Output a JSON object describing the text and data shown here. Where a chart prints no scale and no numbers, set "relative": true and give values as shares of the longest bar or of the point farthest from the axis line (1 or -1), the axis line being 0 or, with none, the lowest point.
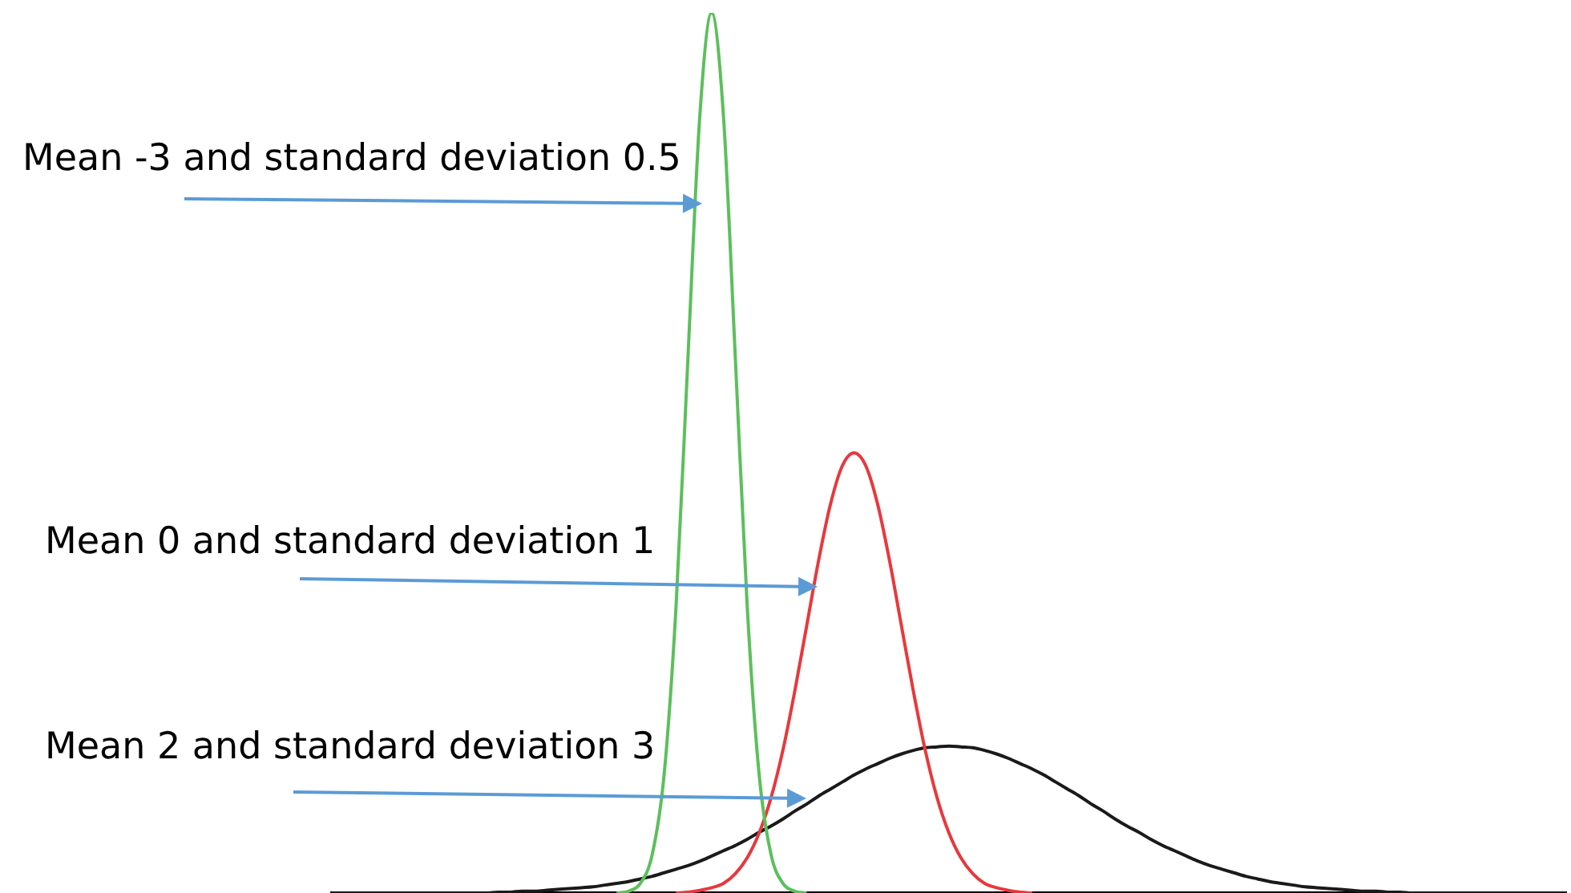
{
  "chart_data": {
    "type": "line",
    "relative": true,
    "categories": [
      null,
      null,
      null,
      null,
      null,
      null,
      null,
      null,
      null,
      null,
      null,
      null,
      null,
      null,
      null,
      null,
      null,
      null,
      null,
      null,
      null,
      null,
      null,
      null,
      null,
      null,
      null,
      null,
      null,
      null,
      null,
      null,
      null,
      null,
      null,
      null,
      null,
      null,
      null,
      null,
      null,
      null,
      null,
      null,
      null,
      null,
      null,
      null,
      null,
      null,
      null,
      null,
      null,
      null,
      null,
      null,
      null,
      null,
      null,
      null,
      null,
      null,
      null,
      null,
      null,
      null,
      null,
      null,
      null,
      null,
      null,
      null,
      null,
      null,
      null,
      null,
      null,
      null,
      null,
      null,
      null,
      null,
      null,
      null,
      null,
      null,
      null,
      null,
      null,
      null,
      null,
      null,
      null,
      null,
      null,
      null,
      null,
      null,
      null,
      null,
      null,
      null,
      null,
      null,
      null
    ],
    "series": [
      {
        "name": "Mean -3 and standard deviation 0.5",
        "color": "#5cbf5c",
        "values": [
          null,
          null,
          null,
          null,
          null,
          null,
          null,
          null,
          null,
          null,
          null,
          null,
          null,
          null,
          null,
          null,
          null,
          null,
          null,
          null,
          null,
          null,
          null,
          null,
          0,
          0.002,
          0.011,
          0.044,
          0.135,
          0.325,
          0.607,
          0.882,
          1,
          0.882,
          0.607,
          0.325,
          0.135,
          0.044,
          0.011,
          0.002,
          0,
          null,
          null,
          null,
          null,
          null,
          null,
          null,
          null,
          null,
          null,
          null,
          null,
          null,
          null,
          null,
          null,
          null,
          null,
          null,
          null,
          null,
          null,
          null,
          null,
          null,
          null,
          null,
          null,
          null,
          null,
          null,
          null,
          null,
          null,
          null,
          null,
          null,
          null,
          null,
          null,
          null,
          null,
          null,
          null,
          null,
          null,
          null,
          null,
          null,
          null,
          null,
          null,
          null,
          null,
          null,
          null,
          null,
          null,
          null,
          null,
          null,
          null,
          null,
          null
        ]
      },
      {
        "name": "Mean 0 and standard deviation 1",
        "color": "#e8383d",
        "values": [
          null,
          null,
          null,
          null,
          null,
          null,
          null,
          null,
          null,
          null,
          null,
          null,
          null,
          null,
          null,
          null,
          null,
          null,
          null,
          null,
          null,
          null,
          null,
          null,
          null,
          null,
          null,
          null,
          null,
          0,
          0.001,
          0.003,
          0.006,
          0.011,
          0.022,
          0.04,
          0.068,
          0.108,
          0.162,
          0.229,
          0.303,
          0.377,
          0.441,
          0.485,
          0.5,
          0.485,
          0.441,
          0.377,
          0.303,
          0.229,
          0.162,
          0.108,
          0.068,
          0.04,
          0.022,
          0.011,
          0.006,
          0.003,
          0.001,
          0,
          null,
          null,
          null,
          null,
          null,
          null,
          null,
          null,
          null,
          null,
          null,
          null,
          null,
          null,
          null,
          null,
          null,
          null,
          null,
          null,
          null,
          null,
          null,
          null,
          null,
          null,
          null,
          null,
          null,
          null,
          null,
          null,
          null,
          null,
          null,
          null,
          null,
          null,
          null,
          null,
          null,
          null,
          null,
          null,
          null
        ]
      },
      {
        "name": "Mean 2 and standard deviation 3",
        "color": "#1a1a1a",
        "values": [
          0,
          0,
          0,
          0,
          0,
          0,
          0,
          0,
          0,
          0,
          0,
          0,
          0,
          0,
          0.001,
          0.001,
          0.002,
          0.002,
          0.003,
          0.004,
          0.005,
          0.006,
          0.007,
          0.009,
          0.011,
          0.013,
          0.016,
          0.019,
          0.023,
          0.027,
          0.031,
          0.036,
          0.042,
          0.048,
          0.054,
          0.061,
          0.069,
          0.076,
          0.084,
          0.093,
          0.101,
          0.11,
          0.118,
          0.126,
          0.134,
          0.141,
          0.147,
          0.153,
          0.158,
          0.162,
          0.165,
          0.166,
          0.167,
          0.166,
          0.165,
          0.162,
          0.158,
          0.153,
          0.147,
          0.141,
          0.134,
          0.126,
          0.118,
          0.11,
          0.101,
          0.093,
          0.084,
          0.076,
          0.069,
          0.061,
          0.054,
          0.048,
          0.042,
          0.036,
          0.031,
          0.027,
          0.023,
          0.019,
          0.016,
          0.013,
          0.011,
          0.009,
          0.007,
          0.006,
          0.005,
          0.004,
          0.003,
          0.002,
          0.002,
          0.001,
          0.001,
          0,
          0,
          0,
          0,
          0,
          0,
          0,
          0,
          0,
          0,
          0,
          0,
          0,
          0
        ]
      }
    ]
  }
}
